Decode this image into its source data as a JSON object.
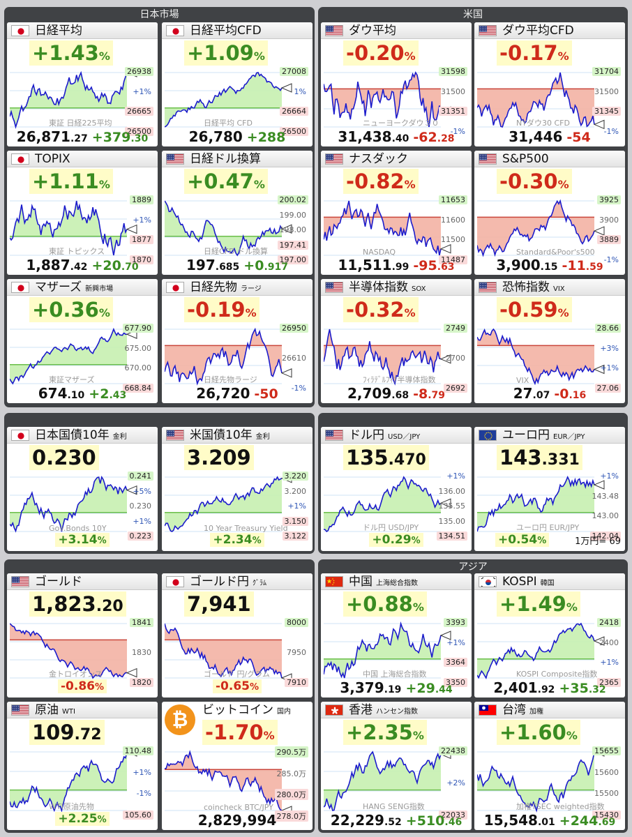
{
  "sections": {
    "japan": "日本市場",
    "us": "米国",
    "asia": "アジア"
  },
  "cards": {
    "nikkei": {
      "name": "日経平均",
      "pct": "+1.43",
      "unit": "%",
      "value": "26,871",
      "value_dec": ".27",
      "change": "+379",
      "change_dec": ".30",
      "label": "東証 日経225平均",
      "ticks": [
        "26938",
        "+1%",
        "26665",
        "26500"
      ]
    },
    "nikkeicfd": {
      "name": "日経平均CFD",
      "pct": "+1.09",
      "unit": "%",
      "value": "26,780",
      "change": "+288",
      "label": "日経平均 CFD",
      "ticks": [
        "27008",
        "1%",
        "26664",
        "26500"
      ]
    },
    "dow": {
      "name": "ダウ平均",
      "pct": "-0.20",
      "unit": "%",
      "value": "31,438",
      "value_dec": ".40",
      "change": "-62",
      "change_dec": ".28",
      "label": "ニューヨークダウ３０",
      "ticks": [
        "31598",
        "31500",
        "31351",
        "-1%"
      ]
    },
    "dowcfd": {
      "name": "ダウ平均CFD",
      "pct": "-0.17",
      "unit": "%",
      "value": "31,446",
      "change": "-54",
      "label": "NYダウ30 CFD",
      "ticks": [
        "31704",
        "31500",
        "31345",
        "-1%"
      ]
    },
    "topix": {
      "name": "TOPIX",
      "pct": "+1.11",
      "unit": "%",
      "value": "1,887",
      "value_dec": ".42",
      "change": "+20",
      "change_dec": ".70",
      "label": "東証 トピックス",
      "ticks": [
        "1889",
        "+1%",
        "1877",
        "1870"
      ]
    },
    "nkusd": {
      "name": "日経ドル換算",
      "pct": "+0.47",
      "unit": "%",
      "value": "197",
      "value_dec": ".685",
      "change": "+0",
      "change_dec": ".917",
      "label": "日経CFD ドル換算",
      "ticks": [
        "200.02",
        "199.00",
        "198.00",
        "197.41",
        "197.00"
      ]
    },
    "nasdaq": {
      "name": "ナスダック",
      "pct": "-0.82",
      "unit": "%",
      "value": "11,511",
      "value_dec": ".99",
      "change": "-95",
      "change_dec": ".63",
      "label": "NASDAQ",
      "ticks": [
        "11653",
        "11600",
        "11500",
        "11487"
      ]
    },
    "sp500": {
      "name": "S&P500",
      "pct": "-0.30",
      "unit": "%",
      "value": "3,900",
      "value_dec": ".15",
      "change": "-11",
      "change_dec": ".59",
      "label": "Standard&Poor's500",
      "ticks": [
        "3925",
        "3900",
        "3889",
        "-1%"
      ]
    },
    "mothers": {
      "name": "マザーズ",
      "sub": "新興市場",
      "pct": "+0.36",
      "unit": "%",
      "value": "674",
      "value_dec": ".10",
      "change": "+2",
      "change_dec": ".43",
      "label": "東証マザーズ",
      "ticks": [
        "677.90",
        "675.00",
        "670.00",
        "668.84"
      ]
    },
    "nkfut": {
      "name": "日経先物",
      "sub": "ラージ",
      "pct": "-0.19",
      "unit": "%",
      "value": "26,720",
      "change": "-50",
      "label": "日経先物ラージ",
      "ticks": [
        "26950",
        "26610",
        "-1%"
      ]
    },
    "sox": {
      "name": "半導体指数",
      "sub": "SOX",
      "pct": "-0.32",
      "unit": "%",
      "value": "2,709",
      "value_dec": ".68",
      "change": "-8",
      "change_dec": ".79",
      "label": "ﾌｨﾗﾃﾞﾙﾌｨｱ半導体指数",
      "ticks": [
        "2749",
        "2700",
        "2692"
      ]
    },
    "vix": {
      "name": "恐怖指数",
      "sub": "VIX",
      "pct": "-0.59",
      "unit": "%",
      "value": "27",
      "value_dec": ".07",
      "change": "-0",
      "change_dec": ".16",
      "label": "VIX",
      "ticks": [
        "28.66",
        "+3%",
        "+1%",
        "27.06"
      ]
    },
    "jgb": {
      "name": "日本国債10年",
      "sub": "金利",
      "value": "0.230",
      "pct": "+3.14",
      "unit": "%",
      "label": "Gov.Bonds 10Y",
      "ticks": [
        "0.241",
        "+5%",
        "0.230",
        "+1%",
        "0.223"
      ]
    },
    "ust": {
      "name": "米国債10年",
      "sub": "金利",
      "value": "3.209",
      "pct": "+2.34",
      "unit": "%",
      "label": "10 Year Treasury Yield",
      "ticks": [
        "3.220",
        "3.200",
        "+1%",
        "3.150",
        "3.122"
      ]
    },
    "usdjpy": {
      "name": "ドル円",
      "sub": "USD／JPY",
      "value": "135",
      "value_dec": ".470",
      "pct": "+0.29",
      "unit": "%",
      "label": "ドル円 USD/JPY",
      "ticks": [
        "+1%",
        "136.00",
        "135.55",
        "135.00",
        "134.51"
      ]
    },
    "eurjpy": {
      "name": "ユーロ円",
      "sub": "EUR／JPY",
      "value": "143",
      "value_dec": ".331",
      "pct": "+0.54",
      "unit": "%",
      "label": "ユーロ円 EUR/JPY",
      "note": "1万円= 69",
      "ticks": [
        "+1%",
        "143.48",
        "143.00",
        "142.04"
      ]
    },
    "gold": {
      "name": "ゴールド",
      "value": "1,823",
      "value_dec": ".20",
      "pct": "-0.86",
      "unit": "%",
      "label": "金トロイオンス",
      "ticks": [
        "1841",
        "1830",
        "1820"
      ]
    },
    "goldjpy": {
      "name": "ゴールド円",
      "sub": "ｸﾞﾗﾑ",
      "value": "7,941",
      "pct": "-0.65",
      "unit": "%",
      "label": "ゴールド 円/グラム",
      "ticks": [
        "8000",
        "7950",
        "7910"
      ]
    },
    "shanghai": {
      "name": "中国",
      "sub": "上海総合指数",
      "pct": "+0.88",
      "unit": "%",
      "value": "3,379",
      "value_dec": ".19",
      "change": "+29",
      "change_dec": ".44",
      "label": "中国 上海総合指数",
      "ticks": [
        "3393",
        "+1%",
        "3364",
        "3350"
      ]
    },
    "kospi": {
      "name": "KOSPI",
      "sub": "韓国",
      "pct": "+1.49",
      "unit": "%",
      "value": "2,401",
      "value_dec": ".92",
      "change": "+35",
      "change_dec": ".32",
      "label": "KOSPI Composite指数",
      "ticks": [
        "2418",
        "2400",
        "+1%",
        "2365"
      ]
    },
    "oil": {
      "name": "原油",
      "sub": "WTI",
      "value": "109",
      "value_dec": ".72",
      "pct": "+2.25",
      "unit": "%",
      "label": "WTI原油先物",
      "ticks": [
        "110.48",
        "+1%",
        "-1%",
        "105.60"
      ]
    },
    "btc": {
      "name": "ビットコイン",
      "sub": "国内",
      "pct": "-1.70",
      "unit": "%",
      "value": "2,829,994",
      "label": "coincheck BTC/JPY",
      "icon": "₿",
      "ticks": [
        "290.5万",
        "285.0万",
        "280.0万",
        "278.0万"
      ]
    },
    "hangseng": {
      "name": "香港",
      "sub": "ハンセン指数",
      "pct": "+2.35",
      "unit": "%",
      "value": "22,229",
      "value_dec": ".52",
      "change": "+510",
      "change_dec": ".46",
      "label": "HANG SENG指数",
      "ticks": [
        "22438",
        "+2%",
        "22033"
      ]
    },
    "taiwan": {
      "name": "台湾",
      "sub": "加権",
      "pct": "+1.60",
      "unit": "%",
      "value": "15,548",
      "value_dec": ".01",
      "change": "+244",
      "change_dec": ".69",
      "label": "加権TSEC weighted指数",
      "ticks": [
        "15655",
        "15600",
        "15500",
        "15430"
      ]
    }
  },
  "colors": {
    "up": "#3a8c22",
    "down": "#cf2a1a",
    "line": "#1b1bcc",
    "up_fill": "#c6f0b0",
    "down_fill": "#f3b3a4",
    "highlight": "#fffcc8"
  }
}
